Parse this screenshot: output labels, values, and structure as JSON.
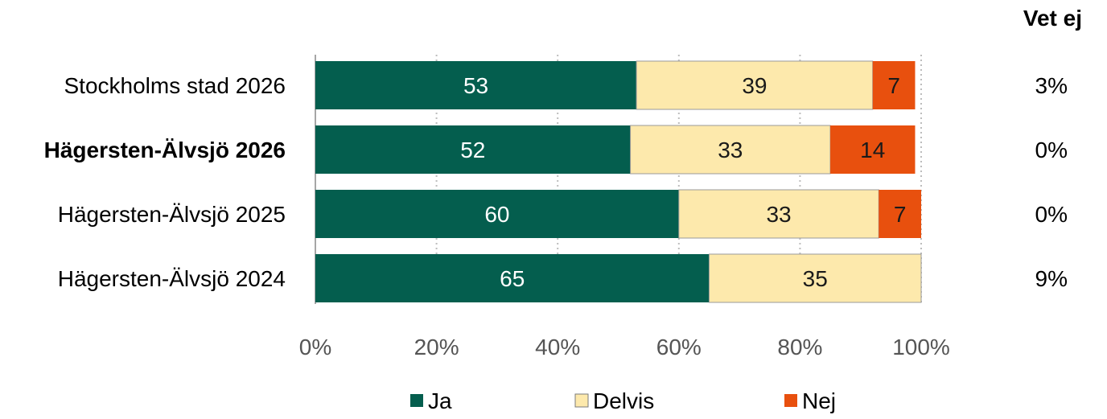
{
  "chart_data": {
    "type": "bar",
    "orientation": "horizontal",
    "stacked": true,
    "categories": [
      "Stockholms stad 2026",
      "Hägersten-Älvsjö 2026",
      "Hägersten-Älvsjö 2025",
      "Hägersten-Älvsjö 2024"
    ],
    "highlighted_category": "Hägersten-Älvsjö 2026",
    "series": [
      {
        "name": "Ja",
        "color": "#045e4e",
        "label_color": "#ffffff",
        "values": [
          53,
          52,
          60,
          65
        ]
      },
      {
        "name": "Delvis",
        "color": "#fde9ac",
        "label_color": "#1a1a1a",
        "values": [
          39,
          33,
          33,
          35
        ]
      },
      {
        "name": "Nej",
        "color": "#e8500e",
        "label_color": "#1a1a1a",
        "values": [
          7,
          14,
          7,
          0
        ]
      }
    ],
    "xlim": [
      0,
      100
    ],
    "xticks": [
      "0%",
      "20%",
      "40%",
      "60%",
      "80%",
      "100%"
    ],
    "grid": "vertical dotted",
    "legend_position": "bottom",
    "side_column": {
      "title": "Vet ej",
      "values": [
        "3%",
        "0%",
        "0%",
        "9%"
      ]
    }
  }
}
